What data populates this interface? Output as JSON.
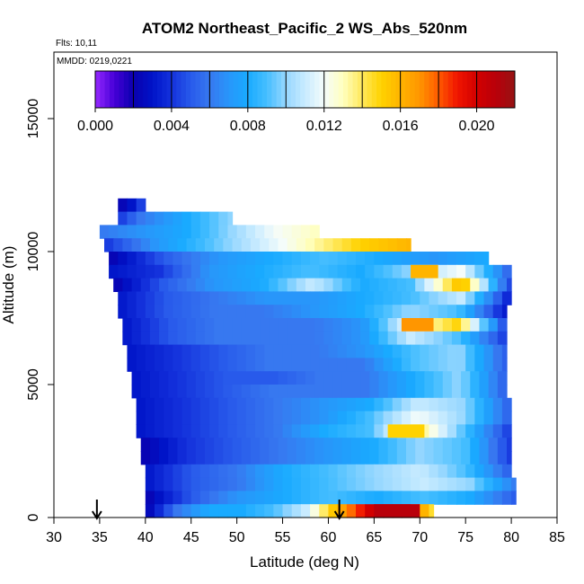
{
  "chart_data": {
    "type": "heatmap",
    "title": "ATOM2 Northeast_Pacific_2 WS_Abs_520nm",
    "flights_text": "Flts: 10,11",
    "dates_text": "MMDD: 0219,0221",
    "xlabel": "Latitude (deg N)",
    "ylabel": "Altitude (m)",
    "xlim": [
      30,
      85
    ],
    "ylim": [
      0,
      17500
    ],
    "x_ticks": [
      "30",
      "35",
      "40",
      "45",
      "50",
      "55",
      "60",
      "65",
      "70",
      "75",
      "80",
      "85"
    ],
    "y_ticks": [
      "0",
      "5000",
      "10000",
      "15000"
    ],
    "colorbar": {
      "range": [
        0,
        0.022
      ],
      "tick_labels": [
        "0.000",
        "0.004",
        "0.008",
        "0.012",
        "0.016",
        "0.020"
      ],
      "tick_values": [
        0.0,
        0.004,
        0.008,
        0.012,
        0.016,
        0.02
      ],
      "segment_breaks": [
        0.0,
        0.002,
        0.004,
        0.006,
        0.008,
        0.01,
        0.012,
        0.014,
        0.016,
        0.018,
        0.02,
        0.022
      ]
    },
    "profile_markers_lat": [
      34.7,
      61.2
    ],
    "bands": [
      {
        "alt": [
          11500,
          12000
        ],
        "lat": [
          37.0,
          40.0
        ],
        "v": [
          0.002,
          0.003,
          0.005
        ]
      },
      {
        "alt": [
          11000,
          11500
        ],
        "lat": [
          37.0,
          49.5
        ],
        "v": [
          0.004,
          0.006,
          0.007,
          0.008,
          0.009,
          0.01
        ]
      },
      {
        "alt": [
          10500,
          11000
        ],
        "lat": [
          35.0,
          59.0
        ],
        "v": [
          0.006,
          0.007,
          0.008,
          0.01,
          0.012,
          0.013
        ]
      },
      {
        "alt": [
          10000,
          10500
        ],
        "lat": [
          35.5,
          69.0
        ],
        "v": [
          0.004,
          0.007,
          0.009,
          0.011,
          0.013,
          0.015,
          0.016
        ]
      },
      {
        "alt": [
          9500,
          10000
        ],
        "lat": [
          36.0,
          77.5
        ],
        "v": [
          0.002,
          0.005,
          0.007,
          0.008,
          0.009,
          0.008,
          0.007,
          0.008
        ]
      },
      {
        "alt": [
          9000,
          9500
        ],
        "lat": [
          36.0,
          80.0
        ],
        "v": [
          0.003,
          0.004,
          0.007,
          0.008,
          0.009,
          0.008,
          0.01,
          0.012,
          0.005
        ]
      },
      {
        "alt": [
          8500,
          9000
        ],
        "lat": [
          36.5,
          80.0
        ],
        "v": [
          0.002,
          0.005,
          0.007,
          0.008,
          0.011,
          0.008,
          0.009,
          0.016,
          0.004
        ]
      },
      {
        "alt": [
          8000,
          8500
        ],
        "lat": [
          37.0,
          80.0
        ],
        "v": [
          0.003,
          0.005,
          0.006,
          0.007,
          0.007,
          0.008,
          0.009,
          0.011,
          0.003
        ]
      },
      {
        "alt": [
          7500,
          8000
        ],
        "lat": [
          37.0,
          79.5
        ],
        "v": [
          0.003,
          0.005,
          0.006,
          0.006,
          0.007,
          0.008,
          0.01,
          0.009,
          0.003
        ]
      },
      {
        "alt": [
          7000,
          7500
        ],
        "lat": [
          37.5,
          79.5
        ],
        "v": [
          0.003,
          0.005,
          0.006,
          0.006,
          0.006,
          0.007,
          0.012,
          0.015,
          0.004
        ]
      },
      {
        "alt": [
          6500,
          7000
        ],
        "lat": [
          37.5,
          79.5
        ],
        "v": [
          0.003,
          0.005,
          0.006,
          0.006,
          0.006,
          0.007,
          0.011,
          0.009,
          0.004
        ]
      },
      {
        "alt": [
          6000,
          6500
        ],
        "lat": [
          38.0,
          79.5
        ],
        "v": [
          0.003,
          0.004,
          0.005,
          0.006,
          0.006,
          0.007,
          0.009,
          0.01,
          0.005
        ]
      },
      {
        "alt": [
          5500,
          6000
        ],
        "lat": [
          38.0,
          79.5
        ],
        "v": [
          0.003,
          0.004,
          0.005,
          0.006,
          0.006,
          0.006,
          0.009,
          0.01,
          0.005
        ]
      },
      {
        "alt": [
          5000,
          5500
        ],
        "lat": [
          38.5,
          79.5
        ],
        "v": [
          0.003,
          0.004,
          0.005,
          0.005,
          0.006,
          0.006,
          0.008,
          0.01,
          0.005
        ]
      },
      {
        "alt": [
          4500,
          5000
        ],
        "lat": [
          38.5,
          79.5
        ],
        "v": [
          0.003,
          0.004,
          0.005,
          0.006,
          0.006,
          0.006,
          0.008,
          0.01,
          0.005
        ]
      },
      {
        "alt": [
          4000,
          4500
        ],
        "lat": [
          39.0,
          80.0
        ],
        "v": [
          0.003,
          0.004,
          0.005,
          0.006,
          0.007,
          0.008,
          0.011,
          0.01,
          0.005
        ]
      },
      {
        "alt": [
          3500,
          4000
        ],
        "lat": [
          39.0,
          80.0
        ],
        "v": [
          0.003,
          0.004,
          0.005,
          0.006,
          0.007,
          0.009,
          0.012,
          0.01,
          0.005
        ]
      },
      {
        "alt": [
          3000,
          3500
        ],
        "lat": [
          39.0,
          80.0
        ],
        "v": [
          0.003,
          0.004,
          0.005,
          0.006,
          0.008,
          0.009,
          0.014,
          0.009,
          0.004
        ]
      },
      {
        "alt": [
          2500,
          3000
        ],
        "lat": [
          39.5,
          80.0
        ],
        "v": [
          0.002,
          0.004,
          0.005,
          0.006,
          0.007,
          0.008,
          0.01,
          0.009,
          0.004
        ]
      },
      {
        "alt": [
          2000,
          2500
        ],
        "lat": [
          39.5,
          80.0
        ],
        "v": [
          0.002,
          0.004,
          0.005,
          0.006,
          0.007,
          0.008,
          0.01,
          0.009,
          0.004
        ]
      },
      {
        "alt": [
          1500,
          2000
        ],
        "lat": [
          40.0,
          80.0
        ],
        "v": [
          0.003,
          0.005,
          0.006,
          0.008,
          0.009,
          0.01,
          0.011,
          0.009,
          0.005
        ]
      },
      {
        "alt": [
          1000,
          1500
        ],
        "lat": [
          40.0,
          80.5
        ],
        "v": [
          0.003,
          0.005,
          0.006,
          0.008,
          0.009,
          0.01,
          0.011,
          0.01,
          0.006
        ]
      },
      {
        "alt": [
          500,
          1000
        ],
        "lat": [
          40.0,
          80.5
        ],
        "v": [
          0.002,
          0.005,
          0.007,
          0.008,
          0.009,
          0.008,
          0.009,
          0.008,
          0.005
        ]
      },
      {
        "alt": [
          0,
          500
        ],
        "lat": [
          40.0,
          71.5
        ],
        "v": [
          0.002,
          0.006,
          0.008,
          0.008,
          0.009,
          0.011,
          0.016,
          0.02,
          0.021,
          0.014
        ]
      }
    ],
    "hotspots": [
      {
        "alt": [
          9000,
          9500
        ],
        "lat": [
          69.0,
          72.0
        ],
        "v": 0.016
      },
      {
        "alt": [
          7000,
          7500
        ],
        "lat": [
          68.0,
          71.5
        ],
        "v": 0.017
      },
      {
        "alt": [
          3000,
          3500
        ],
        "lat": [
          66.5,
          70.5
        ],
        "v": 0.015
      },
      {
        "alt": [
          0,
          500
        ],
        "lat": [
          65.0,
          70.0
        ],
        "v": 0.021
      }
    ]
  }
}
